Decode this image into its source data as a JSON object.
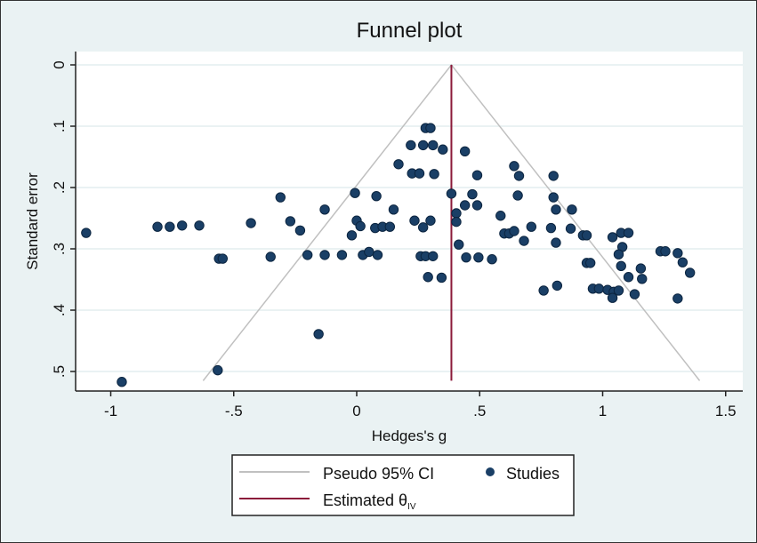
{
  "chart_data": {
    "type": "scatter",
    "title": "Funnel plot",
    "xlabel": "Hedges's g",
    "ylabel": "Standard error",
    "xlim": [
      -1.1,
      1.55
    ],
    "ylim": [
      0,
      0.52
    ],
    "y_reversed": true,
    "xticks": [
      {
        "v": -1,
        "label": "-1"
      },
      {
        "v": -0.5,
        "label": "-.5"
      },
      {
        "v": 0,
        "label": "0"
      },
      {
        "v": 0.5,
        "label": ".5"
      },
      {
        "v": 1,
        "label": "1"
      },
      {
        "v": 1.5,
        "label": "1.5"
      }
    ],
    "yticks": [
      {
        "v": 0,
        "label": "0"
      },
      {
        "v": 0.1,
        "label": ".1"
      },
      {
        "v": 0.2,
        "label": ".2"
      },
      {
        "v": 0.3,
        "label": ".3"
      },
      {
        "v": 0.4,
        "label": ".4"
      },
      {
        "v": 0.5,
        "label": ".5"
      }
    ],
    "grid": true,
    "estimate": 0.385,
    "ci_max_se": 0.515,
    "legend": {
      "placement": "bottom",
      "ci_label": "Pseudo 95% CI",
      "studies_label": "Studies",
      "estimate_label": "Estimated θ",
      "estimate_sub": "IV"
    },
    "colors": {
      "points": "#1a3f66",
      "ci": "#c0c0c0",
      "estimate": "#8b1a3a",
      "background": "#eaf2f3",
      "grid": "#eaf2f3"
    },
    "points": [
      [
        -1.1,
        0.274
      ],
      [
        -0.955,
        0.517
      ],
      [
        -0.81,
        0.264
      ],
      [
        -0.76,
        0.264
      ],
      [
        -0.71,
        0.262
      ],
      [
        -0.64,
        0.262
      ],
      [
        -0.56,
        0.316
      ],
      [
        -0.545,
        0.316
      ],
      [
        -0.565,
        0.498
      ],
      [
        -0.43,
        0.258
      ],
      [
        -0.31,
        0.216
      ],
      [
        -0.27,
        0.255
      ],
      [
        -0.23,
        0.27
      ],
      [
        -0.13,
        0.236
      ],
      [
        -0.35,
        0.313
      ],
      [
        -0.2,
        0.31
      ],
      [
        -0.13,
        0.31
      ],
      [
        -0.06,
        0.31
      ],
      [
        -0.155,
        0.439
      ],
      [
        -0.007,
        0.209
      ],
      [
        0.0,
        0.254
      ],
      [
        0.015,
        0.263
      ],
      [
        -0.02,
        0.278
      ],
      [
        0.025,
        0.31
      ],
      [
        0.05,
        0.305
      ],
      [
        0.085,
        0.31
      ],
      [
        0.08,
        0.214
      ],
      [
        0.15,
        0.236
      ],
      [
        0.075,
        0.266
      ],
      [
        0.105,
        0.264
      ],
      [
        0.135,
        0.264
      ],
      [
        0.28,
        0.103
      ],
      [
        0.3,
        0.103
      ],
      [
        0.22,
        0.131
      ],
      [
        0.27,
        0.131
      ],
      [
        0.31,
        0.131
      ],
      [
        0.35,
        0.138
      ],
      [
        0.44,
        0.141
      ],
      [
        0.17,
        0.162
      ],
      [
        0.225,
        0.177
      ],
      [
        0.255,
        0.177
      ],
      [
        0.315,
        0.178
      ],
      [
        0.49,
        0.18
      ],
      [
        0.235,
        0.254
      ],
      [
        0.27,
        0.265
      ],
      [
        0.3,
        0.254
      ],
      [
        0.26,
        0.312
      ],
      [
        0.28,
        0.312
      ],
      [
        0.31,
        0.312
      ],
      [
        0.29,
        0.346
      ],
      [
        0.345,
        0.347
      ],
      [
        0.385,
        0.21
      ],
      [
        0.47,
        0.211
      ],
      [
        0.44,
        0.229
      ],
      [
        0.49,
        0.229
      ],
      [
        0.405,
        0.242
      ],
      [
        0.405,
        0.256
      ],
      [
        0.415,
        0.293
      ],
      [
        0.445,
        0.314
      ],
      [
        0.495,
        0.314
      ],
      [
        0.55,
        0.317
      ],
      [
        0.585,
        0.246
      ],
      [
        0.6,
        0.275
      ],
      [
        0.62,
        0.275
      ],
      [
        0.64,
        0.271
      ],
      [
        0.68,
        0.287
      ],
      [
        0.71,
        0.264
      ],
      [
        0.64,
        0.165
      ],
      [
        0.66,
        0.181
      ],
      [
        0.655,
        0.213
      ],
      [
        0.8,
        0.181
      ],
      [
        0.8,
        0.216
      ],
      [
        0.81,
        0.236
      ],
      [
        0.79,
        0.266
      ],
      [
        0.81,
        0.29
      ],
      [
        0.76,
        0.368
      ],
      [
        0.815,
        0.36
      ],
      [
        0.875,
        0.236
      ],
      [
        0.87,
        0.267
      ],
      [
        0.92,
        0.278
      ],
      [
        0.935,
        0.278
      ],
      [
        1.04,
        0.281
      ],
      [
        1.075,
        0.274
      ],
      [
        1.105,
        0.274
      ],
      [
        1.08,
        0.297
      ],
      [
        1.065,
        0.309
      ],
      [
        1.235,
        0.304
      ],
      [
        1.255,
        0.304
      ],
      [
        1.305,
        0.307
      ],
      [
        1.325,
        0.322
      ],
      [
        1.355,
        0.339
      ],
      [
        0.935,
        0.323
      ],
      [
        0.95,
        0.323
      ],
      [
        1.075,
        0.328
      ],
      [
        1.155,
        0.332
      ],
      [
        1.105,
        0.346
      ],
      [
        1.16,
        0.349
      ],
      [
        0.96,
        0.365
      ],
      [
        0.985,
        0.365
      ],
      [
        1.02,
        0.367
      ],
      [
        1.045,
        0.37
      ],
      [
        1.04,
        0.38
      ],
      [
        1.065,
        0.368
      ],
      [
        1.13,
        0.374
      ],
      [
        1.305,
        0.381
      ]
    ]
  }
}
